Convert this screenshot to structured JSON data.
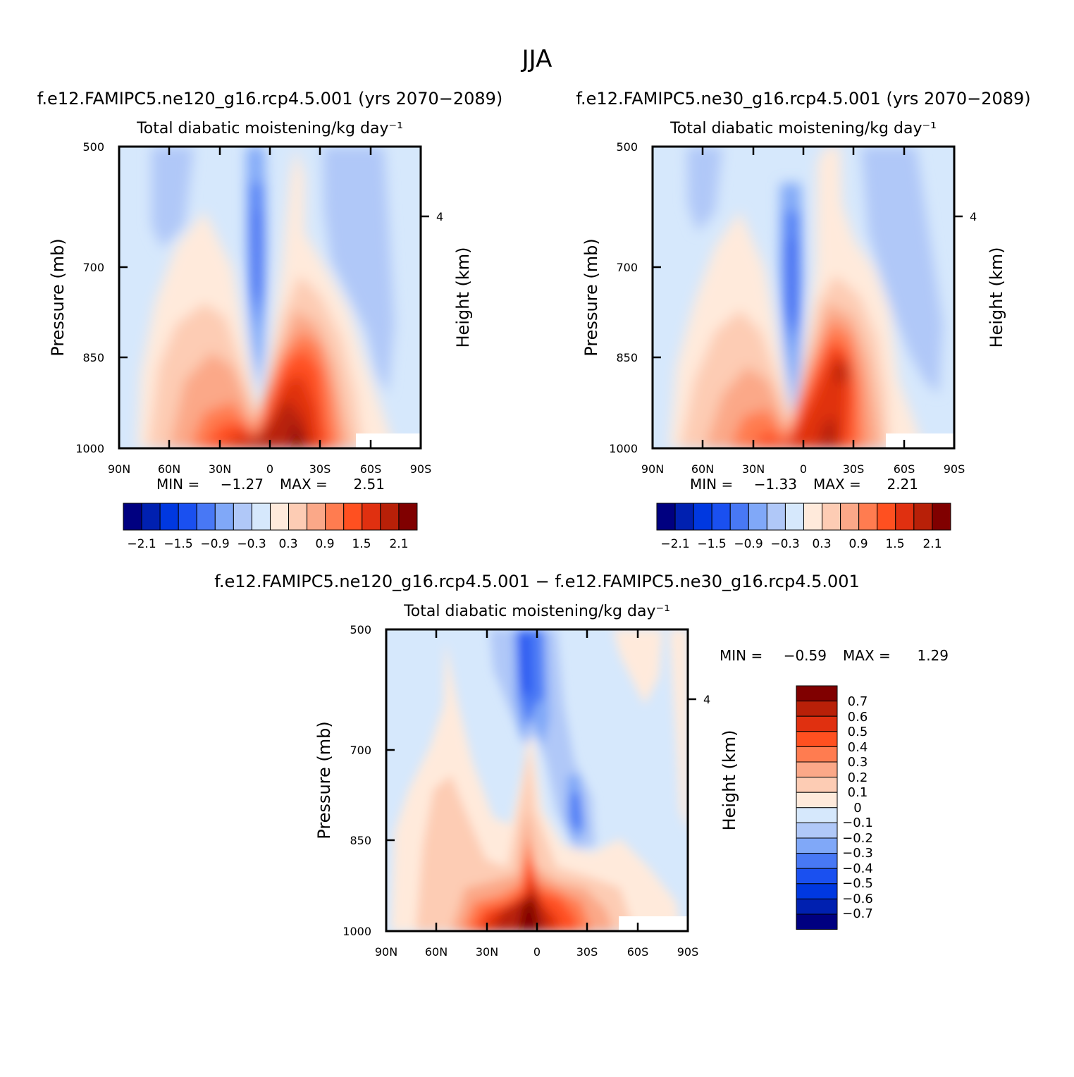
{
  "page_title": "JJA",
  "colors": {
    "diverging_16": [
      "#000080",
      "#0020b0",
      "#0038e0",
      "#1a50f0",
      "#4878f5",
      "#80a8f8",
      "#b0c8f8",
      "#d6e8fc",
      "#ffeadb",
      "#fdccb4",
      "#fba888",
      "#ff7c50",
      "#ff5020",
      "#e03010",
      "#b82008",
      "#800000"
    ]
  },
  "chart_data": [
    {
      "type": "heatmap",
      "case": "f.e12.FAMIPC5.ne120_g16.rcp4.5.001 (yrs 2070−2089)",
      "title": "Total diabatic moistening/kg day⁻¹",
      "ylabel": "Pressure (mb)",
      "y2label": "Height (km)",
      "xticks": [
        "90N",
        "60N",
        "30N",
        "0",
        "30S",
        "60S",
        "90S"
      ],
      "xlim": [
        90,
        -90
      ],
      "yticks": [
        "500",
        "700",
        "850",
        "1000"
      ],
      "ylim": [
        500,
        1000
      ],
      "y2ticks": [
        "4"
      ],
      "min_label": "MIN =",
      "min_value": "−1.27",
      "max_label": "MAX =",
      "max_value": "2.51",
      "colorbar_labels": [
        "−2.1",
        "−1.5",
        "−0.9",
        "−0.3",
        "0.3",
        "0.9",
        "1.5",
        "2.1"
      ],
      "features": [
        {
          "lat": 8,
          "p": 690,
          "value": -1.27,
          "desc": "Negative core near equator"
        },
        {
          "lat": -18,
          "p": 960,
          "value": 2.51,
          "desc": "Strong positive near surface south of equator"
        }
      ]
    },
    {
      "type": "heatmap",
      "case": "f.e12.FAMIPC5.ne30_g16.rcp4.5.001 (yrs 2070−2089)",
      "title": "Total diabatic moistening/kg day⁻¹",
      "ylabel": "Pressure (mb)",
      "y2label": "Height (km)",
      "xticks": [
        "90N",
        "60N",
        "30N",
        "0",
        "30S",
        "60S",
        "90S"
      ],
      "xlim": [
        90,
        -90
      ],
      "yticks": [
        "500",
        "700",
        "850",
        "1000"
      ],
      "ylim": [
        500,
        1000
      ],
      "y2ticks": [
        "4"
      ],
      "min_label": "MIN =",
      "min_value": "−1.33",
      "max_label": "MAX =",
      "max_value": "2.21",
      "colorbar_labels": [
        "−2.1",
        "−1.5",
        "−0.9",
        "−0.3",
        "0.3",
        "0.9",
        "1.5",
        "2.1"
      ],
      "features": [
        {
          "lat": 8,
          "p": 720,
          "value": -1.33,
          "desc": "Negative core near equator"
        },
        {
          "lat": -22,
          "p": 860,
          "value": 2.21,
          "desc": "Positive maximum south of equator"
        }
      ]
    },
    {
      "type": "heatmap",
      "case": "f.e12.FAMIPC5.ne120_g16.rcp4.5.001 − f.e12.FAMIPC5.ne30_g16.rcp4.5.001",
      "title": "Total diabatic moistening/kg day⁻¹",
      "ylabel": "Pressure (mb)",
      "y2label": "Height (km)",
      "xticks": [
        "90N",
        "60N",
        "30N",
        "0",
        "30S",
        "60S",
        "90S"
      ],
      "xlim": [
        90,
        -90
      ],
      "yticks": [
        "500",
        "700",
        "850",
        "1000"
      ],
      "ylim": [
        500,
        1000
      ],
      "y2ticks": [
        "4"
      ],
      "min_label": "MIN =",
      "min_value": "−0.59",
      "max_label": "MAX =",
      "max_value": "1.29",
      "colorbar_labels": [
        "0.7",
        "0.6",
        "0.5",
        "0.4",
        "0.3",
        "0.2",
        "0.1",
        "0",
        "−0.1",
        "−0.2",
        "−0.3",
        "−0.4",
        "−0.5",
        "−0.6",
        "−0.7"
      ],
      "features": [
        {
          "lat": 8,
          "p": 560,
          "value": -0.59,
          "desc": "Negative core aloft near equator"
        },
        {
          "lat": 3,
          "p": 960,
          "value": 1.29,
          "desc": "Positive maximum near surface"
        }
      ]
    }
  ]
}
